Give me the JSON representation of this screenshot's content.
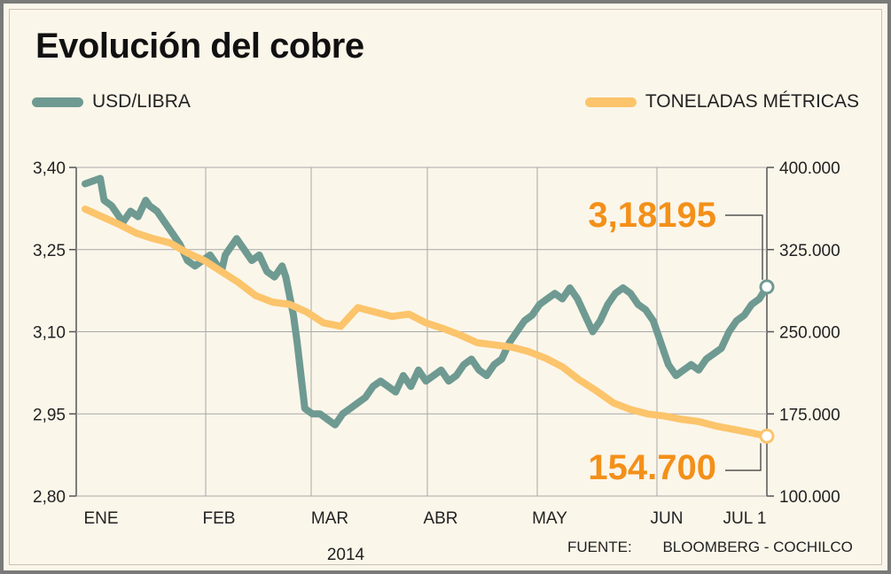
{
  "title": "Evolución del cobre",
  "legend": {
    "series1": "USD/LIBRA",
    "series2": "TONELADAS MÉTRICAS"
  },
  "colors": {
    "usd": "#6e9a92",
    "ton": "#fcc46b",
    "highlight": "#f39019",
    "grid": "#a8a8a8",
    "background": "#fbf6ea"
  },
  "source": {
    "label": "FUENTE:",
    "text": "BLOOMBERG - COCHILCO"
  },
  "chart_data": {
    "type": "line",
    "title": "Evolución del cobre",
    "year_label": "2014",
    "x_months": [
      "ENE",
      "FEB",
      "MAR",
      "ABR",
      "MAY",
      "JUN",
      "JUL 1"
    ],
    "left_axis": {
      "ticks": [
        "2,80",
        "2,95",
        "3,10",
        "3,25",
        "3,40"
      ],
      "ylim": [
        2.8,
        3.4
      ]
    },
    "right_axis": {
      "ticks": [
        "100.000",
        "175.000",
        "250.000",
        "325.000",
        "400.000"
      ],
      "ylim": [
        100000,
        400000
      ]
    },
    "callouts": {
      "usd_last": "3,18195",
      "ton_last": "154.700"
    },
    "series": [
      {
        "name": "USD/LIBRA",
        "axis": "left",
        "points": [
          [
            0.0,
            3.37
          ],
          [
            0.4,
            3.38
          ],
          [
            0.5,
            3.34
          ],
          [
            0.7,
            3.33
          ],
          [
            0.8,
            3.32
          ],
          [
            1.0,
            3.3
          ],
          [
            1.2,
            3.32
          ],
          [
            1.4,
            3.31
          ],
          [
            1.6,
            3.34
          ],
          [
            1.7,
            3.33
          ],
          [
            1.9,
            3.32
          ],
          [
            2.1,
            3.3
          ],
          [
            2.3,
            3.28
          ],
          [
            2.5,
            3.26
          ],
          [
            2.7,
            3.23
          ],
          [
            2.9,
            3.22
          ],
          [
            3.1,
            3.23
          ],
          [
            3.3,
            3.24
          ],
          [
            3.5,
            3.22
          ],
          [
            3.6,
            3.21
          ],
          [
            3.7,
            3.24
          ],
          [
            3.8,
            3.25
          ],
          [
            4.0,
            3.27
          ],
          [
            4.2,
            3.25
          ],
          [
            4.4,
            3.23
          ],
          [
            4.6,
            3.24
          ],
          [
            4.8,
            3.21
          ],
          [
            5.0,
            3.2
          ],
          [
            5.2,
            3.22
          ],
          [
            5.3,
            3.2
          ],
          [
            5.5,
            3.13
          ],
          [
            5.6,
            3.08
          ],
          [
            5.7,
            3.02
          ],
          [
            5.8,
            2.96
          ],
          [
            6.0,
            2.95
          ],
          [
            6.2,
            2.95
          ],
          [
            6.4,
            2.94
          ],
          [
            6.6,
            2.93
          ],
          [
            6.8,
            2.95
          ],
          [
            7.0,
            2.96
          ],
          [
            7.2,
            2.97
          ],
          [
            7.4,
            2.98
          ],
          [
            7.6,
            3.0
          ],
          [
            7.8,
            3.01
          ],
          [
            8.0,
            3.0
          ],
          [
            8.2,
            2.99
          ],
          [
            8.4,
            3.02
          ],
          [
            8.6,
            3.0
          ],
          [
            8.8,
            3.03
          ],
          [
            9.0,
            3.01
          ],
          [
            9.2,
            3.02
          ],
          [
            9.4,
            3.03
          ],
          [
            9.6,
            3.01
          ],
          [
            9.8,
            3.02
          ],
          [
            10.0,
            3.04
          ],
          [
            10.2,
            3.05
          ],
          [
            10.4,
            3.03
          ],
          [
            10.6,
            3.02
          ],
          [
            10.8,
            3.04
          ],
          [
            11.0,
            3.05
          ],
          [
            11.2,
            3.08
          ],
          [
            11.4,
            3.1
          ],
          [
            11.6,
            3.12
          ],
          [
            11.8,
            3.13
          ],
          [
            12.0,
            3.15
          ],
          [
            12.2,
            3.16
          ],
          [
            12.4,
            3.17
          ],
          [
            12.6,
            3.16
          ],
          [
            12.8,
            3.18
          ],
          [
            13.0,
            3.16
          ],
          [
            13.2,
            3.13
          ],
          [
            13.4,
            3.1
          ],
          [
            13.6,
            3.12
          ],
          [
            13.8,
            3.15
          ],
          [
            14.0,
            3.17
          ],
          [
            14.2,
            3.18
          ],
          [
            14.4,
            3.17
          ],
          [
            14.6,
            3.15
          ],
          [
            14.8,
            3.14
          ],
          [
            15.0,
            3.12
          ],
          [
            15.2,
            3.08
          ],
          [
            15.4,
            3.04
          ],
          [
            15.6,
            3.02
          ],
          [
            15.8,
            3.03
          ],
          [
            16.0,
            3.04
          ],
          [
            16.2,
            3.03
          ],
          [
            16.4,
            3.05
          ],
          [
            16.6,
            3.06
          ],
          [
            16.8,
            3.07
          ],
          [
            17.0,
            3.1
          ],
          [
            17.2,
            3.12
          ],
          [
            17.4,
            3.13
          ],
          [
            17.6,
            3.15
          ],
          [
            17.8,
            3.16
          ],
          [
            18.0,
            3.18195
          ]
        ]
      },
      {
        "name": "TONELADAS MÉTRICAS",
        "axis": "right",
        "points": [
          [
            0.0,
            362000
          ],
          [
            0.5,
            355000
          ],
          [
            1.0,
            348000
          ],
          [
            1.5,
            340000
          ],
          [
            2.0,
            335000
          ],
          [
            2.5,
            331000
          ],
          [
            3.0,
            322000
          ],
          [
            3.5,
            315000
          ],
          [
            4.0,
            305000
          ],
          [
            4.5,
            295000
          ],
          [
            5.0,
            283000
          ],
          [
            5.5,
            277000
          ],
          [
            6.0,
            275000
          ],
          [
            6.5,
            268000
          ],
          [
            7.0,
            258000
          ],
          [
            7.5,
            255000
          ],
          [
            8.0,
            272000
          ],
          [
            8.5,
            268000
          ],
          [
            9.0,
            264000
          ],
          [
            9.5,
            266000
          ],
          [
            10.0,
            258000
          ],
          [
            10.5,
            253000
          ],
          [
            11.0,
            247000
          ],
          [
            11.5,
            240000
          ],
          [
            12.0,
            238000
          ],
          [
            12.5,
            236000
          ],
          [
            13.0,
            232000
          ],
          [
            13.5,
            226000
          ],
          [
            14.0,
            218000
          ],
          [
            14.5,
            206000
          ],
          [
            15.0,
            196000
          ],
          [
            15.5,
            185000
          ],
          [
            16.0,
            179000
          ],
          [
            16.5,
            175000
          ],
          [
            17.0,
            173000
          ],
          [
            17.5,
            170000
          ],
          [
            18.0,
            168000
          ],
          [
            18.5,
            164000
          ],
          [
            19.0,
            161000
          ],
          [
            19.5,
            158000
          ],
          [
            20.0,
            154700
          ]
        ]
      }
    ]
  }
}
